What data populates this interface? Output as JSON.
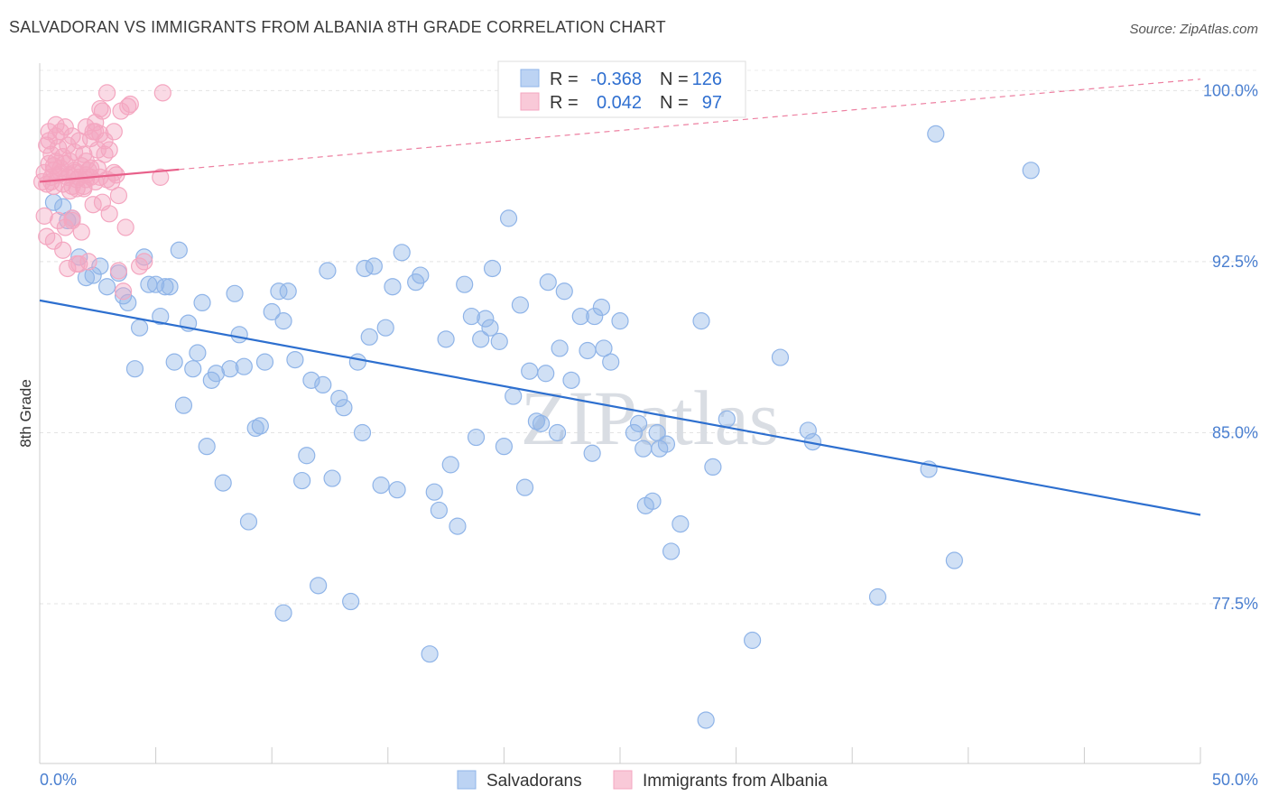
{
  "title": "SALVADORAN VS IMMIGRANTS FROM ALBANIA 8TH GRADE CORRELATION CHART",
  "source": "Source: ZipAtlas.com",
  "watermark": "ZIPatlas",
  "chart_data": {
    "type": "scatter",
    "xlabel": "",
    "ylabel": "8th Grade",
    "xlim": [
      0,
      50
    ],
    "ylim": [
      70.5,
      101.2
    ],
    "x_tick_labels": [
      "0.0%",
      "50.0%"
    ],
    "y_ticks": [
      77.5,
      85.0,
      92.5,
      100.0
    ],
    "y_tick_labels": [
      "77.5%",
      "85.0%",
      "92.5%",
      "100.0%"
    ],
    "grid": true,
    "legend_position": "top-center",
    "stats": [
      {
        "r_label": "R =",
        "r_value": "-0.368",
        "n_label": "N =",
        "n_value": "126"
      },
      {
        "r_label": "R =",
        "r_value": "0.042",
        "n_label": "N =",
        "n_value": "97"
      }
    ],
    "series": [
      {
        "name": "Salvadorans",
        "color": "#8fb4e8",
        "line_color": "#2d6fcf",
        "trend": {
          "x": [
            0,
            50
          ],
          "y": [
            90.8,
            81.4
          ],
          "dashed_from": null
        },
        "points": [
          [
            0.6,
            95.1
          ],
          [
            1.0,
            94.9
          ],
          [
            1.2,
            94.3
          ],
          [
            1.4,
            94.4
          ],
          [
            1.7,
            92.7
          ],
          [
            2.0,
            91.8
          ],
          [
            2.3,
            91.9
          ],
          [
            2.6,
            92.3
          ],
          [
            2.9,
            91.4
          ],
          [
            3.4,
            92.0
          ],
          [
            3.6,
            91.0
          ],
          [
            3.8,
            90.7
          ],
          [
            4.1,
            87.8
          ],
          [
            4.3,
            89.6
          ],
          [
            4.5,
            92.7
          ],
          [
            4.7,
            91.5
          ],
          [
            5.0,
            91.5
          ],
          [
            5.2,
            90.1
          ],
          [
            5.4,
            91.4
          ],
          [
            5.6,
            91.4
          ],
          [
            5.8,
            88.1
          ],
          [
            6.0,
            93.0
          ],
          [
            6.2,
            86.2
          ],
          [
            6.4,
            89.8
          ],
          [
            6.6,
            87.8
          ],
          [
            6.8,
            88.5
          ],
          [
            7.0,
            90.7
          ],
          [
            7.2,
            84.4
          ],
          [
            7.4,
            87.3
          ],
          [
            7.6,
            87.6
          ],
          [
            7.9,
            82.8
          ],
          [
            8.2,
            87.8
          ],
          [
            8.4,
            91.1
          ],
          [
            8.6,
            89.3
          ],
          [
            8.8,
            87.9
          ],
          [
            9.0,
            81.1
          ],
          [
            9.3,
            85.2
          ],
          [
            9.5,
            85.3
          ],
          [
            9.7,
            88.1
          ],
          [
            10.0,
            90.3
          ],
          [
            10.3,
            91.2
          ],
          [
            10.5,
            89.9
          ],
          [
            10.7,
            91.2
          ],
          [
            11.0,
            88.2
          ],
          [
            11.3,
            82.9
          ],
          [
            11.5,
            84.0
          ],
          [
            11.7,
            87.3
          ],
          [
            12.0,
            78.3
          ],
          [
            12.2,
            87.1
          ],
          [
            12.4,
            92.1
          ],
          [
            12.6,
            83.0
          ],
          [
            12.9,
            86.5
          ],
          [
            13.1,
            86.1
          ],
          [
            13.4,
            77.6
          ],
          [
            13.7,
            88.1
          ],
          [
            14.0,
            92.2
          ],
          [
            14.2,
            89.2
          ],
          [
            14.4,
            92.3
          ],
          [
            14.7,
            82.7
          ],
          [
            14.9,
            89.6
          ],
          [
            15.2,
            91.4
          ],
          [
            15.4,
            82.5
          ],
          [
            15.6,
            92.9
          ],
          [
            16.2,
            91.6
          ],
          [
            16.4,
            91.9
          ],
          [
            16.8,
            75.3
          ],
          [
            17.0,
            82.4
          ],
          [
            17.2,
            81.6
          ],
          [
            17.5,
            89.1
          ],
          [
            17.7,
            83.6
          ],
          [
            18.0,
            80.9
          ],
          [
            18.3,
            91.5
          ],
          [
            18.6,
            90.1
          ],
          [
            18.8,
            84.8
          ],
          [
            19.0,
            89.1
          ],
          [
            19.2,
            90.0
          ],
          [
            19.5,
            92.2
          ],
          [
            19.8,
            89.0
          ],
          [
            20.0,
            84.4
          ],
          [
            20.2,
            94.4
          ],
          [
            20.4,
            86.6
          ],
          [
            20.7,
            90.6
          ],
          [
            20.9,
            82.6
          ],
          [
            21.1,
            87.7
          ],
          [
            21.4,
            85.5
          ],
          [
            21.6,
            85.4
          ],
          [
            21.9,
            91.6
          ],
          [
            22.3,
            85.0
          ],
          [
            22.4,
            88.7
          ],
          [
            22.6,
            91.2
          ],
          [
            22.9,
            87.3
          ],
          [
            23.3,
            90.1
          ],
          [
            23.6,
            88.6
          ],
          [
            23.9,
            90.1
          ],
          [
            24.2,
            90.5
          ],
          [
            24.3,
            88.7
          ],
          [
            24.6,
            88.1
          ],
          [
            25.0,
            89.9
          ],
          [
            25.6,
            85.0
          ],
          [
            26.0,
            84.3
          ],
          [
            26.1,
            81.8
          ],
          [
            26.4,
            82.0
          ],
          [
            26.6,
            85.0
          ],
          [
            27.0,
            84.5
          ],
          [
            27.2,
            79.8
          ],
          [
            27.6,
            81.0
          ],
          [
            28.5,
            89.9
          ],
          [
            29.0,
            83.5
          ],
          [
            29.6,
            85.6
          ],
          [
            30.7,
            75.9
          ],
          [
            31.9,
            88.3
          ],
          [
            33.1,
            85.1
          ],
          [
            33.3,
            84.6
          ],
          [
            36.1,
            77.8
          ],
          [
            38.3,
            83.4
          ],
          [
            38.6,
            98.1
          ],
          [
            39.4,
            79.4
          ],
          [
            42.7,
            96.5
          ],
          [
            25.8,
            85.4
          ],
          [
            19.4,
            89.6
          ],
          [
            23.8,
            84.1
          ],
          [
            13.9,
            85.0
          ],
          [
            28.7,
            72.4
          ],
          [
            10.5,
            77.1
          ],
          [
            21.8,
            87.6
          ],
          [
            26.7,
            84.3
          ]
        ]
      },
      {
        "name": "Immigrants from Albania",
        "color": "#f4a6c0",
        "line_color": "#e8608a",
        "trend": {
          "x": [
            0,
            50
          ],
          "y": [
            96.0,
            100.5
          ],
          "dashed_from": 6.0
        },
        "points": [
          [
            0.1,
            96.0
          ],
          [
            0.2,
            94.5
          ],
          [
            0.2,
            96.4
          ],
          [
            0.3,
            93.6
          ],
          [
            0.3,
            95.9
          ],
          [
            0.4,
            96.8
          ],
          [
            0.4,
            97.8
          ],
          [
            0.5,
            96.2
          ],
          [
            0.5,
            97.2
          ],
          [
            0.6,
            95.8
          ],
          [
            0.6,
            96.5
          ],
          [
            0.7,
            98.0
          ],
          [
            0.7,
            96.9
          ],
          [
            0.8,
            97.5
          ],
          [
            0.8,
            96.3
          ],
          [
            0.9,
            98.2
          ],
          [
            0.9,
            96.6
          ],
          [
            1.0,
            97.1
          ],
          [
            1.0,
            95.9
          ],
          [
            1.1,
            96.8
          ],
          [
            1.1,
            98.4
          ],
          [
            1.2,
            96.2
          ],
          [
            1.2,
            97.6
          ],
          [
            1.3,
            95.6
          ],
          [
            1.3,
            96.9
          ],
          [
            1.4,
            98.0
          ],
          [
            1.4,
            94.3
          ],
          [
            1.5,
            96.4
          ],
          [
            1.5,
            97.3
          ],
          [
            1.6,
            95.7
          ],
          [
            1.6,
            96.1
          ],
          [
            1.7,
            97.8
          ],
          [
            1.7,
            92.4
          ],
          [
            1.8,
            96.7
          ],
          [
            1.9,
            97.2
          ],
          [
            1.9,
            95.8
          ],
          [
            2.0,
            98.4
          ],
          [
            2.0,
            96.3
          ],
          [
            2.1,
            92.5
          ],
          [
            2.2,
            97.9
          ],
          [
            2.2,
            96.2
          ],
          [
            2.3,
            95.0
          ],
          [
            2.4,
            98.6
          ],
          [
            2.4,
            96.0
          ],
          [
            2.5,
            97.4
          ],
          [
            2.6,
            99.2
          ],
          [
            2.6,
            96.2
          ],
          [
            2.7,
            95.1
          ],
          [
            2.8,
            97.8
          ],
          [
            2.9,
            99.9
          ],
          [
            2.9,
            96.1
          ],
          [
            3.0,
            97.4
          ],
          [
            3.1,
            96.0
          ],
          [
            3.2,
            98.2
          ],
          [
            3.3,
            96.3
          ],
          [
            3.4,
            95.4
          ],
          [
            3.5,
            99.1
          ],
          [
            3.6,
            91.2
          ],
          [
            3.7,
            94.0
          ],
          [
            3.8,
            99.3
          ],
          [
            0.4,
            98.2
          ],
          [
            0.6,
            93.4
          ],
          [
            0.8,
            94.3
          ],
          [
            1.0,
            93.0
          ],
          [
            1.2,
            92.2
          ],
          [
            1.4,
            94.4
          ],
          [
            1.6,
            92.4
          ],
          [
            1.8,
            93.8
          ],
          [
            2.0,
            96.9
          ],
          [
            2.2,
            96.6
          ],
          [
            2.4,
            98.2
          ],
          [
            2.6,
            98.1
          ],
          [
            2.8,
            97.2
          ],
          [
            0.3,
            97.6
          ],
          [
            0.5,
            96.0
          ],
          [
            0.7,
            98.5
          ],
          [
            0.9,
            96.4
          ],
          [
            1.1,
            94.0
          ],
          [
            1.3,
            96.3
          ],
          [
            1.5,
            96.5
          ],
          [
            1.7,
            96.2
          ],
          [
            1.9,
            95.7
          ],
          [
            2.1,
            96.5
          ],
          [
            2.3,
            98.2
          ],
          [
            2.5,
            96.6
          ],
          [
            2.7,
            99.1
          ],
          [
            3.0,
            94.6
          ],
          [
            3.2,
            96.4
          ],
          [
            3.4,
            92.1
          ],
          [
            3.9,
            99.4
          ],
          [
            4.3,
            92.3
          ],
          [
            5.2,
            96.2
          ],
          [
            5.3,
            99.9
          ],
          [
            4.5,
            92.5
          ],
          [
            2.0,
            96.1
          ],
          [
            1.4,
            95.8
          ],
          [
            0.6,
            96.7
          ]
        ]
      }
    ]
  }
}
